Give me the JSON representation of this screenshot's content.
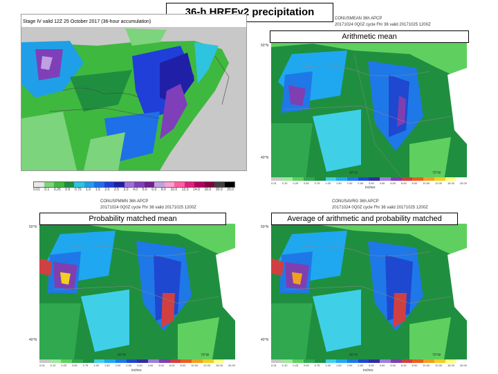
{
  "slide_title": "36-h HREFv2 precipitation",
  "stage4": {
    "header": "Stage IV valid 12Z 25 October 2017 (36-hour accumulation)",
    "legend_values": [
      "0.01",
      "0.1",
      "0.25",
      "0.5",
      "0.75",
      "1.0",
      "1.5",
      "2.0",
      "2.5",
      "3.0",
      "4.0",
      "5.0",
      "6.0",
      "8.0",
      "10.0",
      "12.0",
      "14.0",
      "16.0",
      "20.0",
      "25.0"
    ],
    "legend_colors": [
      "#e8e8e8",
      "#7cd47c",
      "#3fb83f",
      "#1f8f3f",
      "#2ec4e0",
      "#1f9fe8",
      "#1f6fe8",
      "#1f3fd8",
      "#1f1fa8",
      "#9f6fd8",
      "#7f3fb8",
      "#6f1f8f",
      "#c0a0e0",
      "#ff9fd0",
      "#ff5fa0",
      "#e0207f",
      "#b0005f",
      "#7f003f",
      "#3f3f3f",
      "#000000"
    ]
  },
  "panels": [
    {
      "key": "mean",
      "header_line1": "CONUSMEAN 36h APCP",
      "header_line2": "20171024 0Q0Z cycle Fhr 36 valid 20171025 1200Z",
      "caption": "Arithmetic mean"
    },
    {
      "key": "pmm",
      "header_line1": "CONUSPMMN 36h APCP",
      "header_line2": "20171024 0Q0Z cycle Fhr 36 valid 20171025 1200Z",
      "caption": "Probability matched mean"
    },
    {
      "key": "avg",
      "header_line1": "CONUSAVRG 36h APCP",
      "header_line2": "20171024 0Q0Z cycle Fhr 36 valid 20171025 1200Z",
      "caption": "Average of arithmetic and probability matched"
    }
  ],
  "lat_labels": [
    "50°N",
    "40°N"
  ],
  "lon_labels": [
    "80°W",
    "70°W"
  ],
  "units_label": "inches",
  "href_legend_values": [
    "0.01",
    "0.10",
    "0.25",
    "0.50",
    "0.75",
    "1.00",
    "1.50",
    "2.00",
    "2.50",
    "3.00",
    "4.00",
    "5.00",
    "6.00",
    "8.00",
    "10.00",
    "12.00",
    "15.00",
    "20.00"
  ],
  "href_legend_colors": [
    "#c8c8c8",
    "#9fe89f",
    "#5fd05f",
    "#2fa84f",
    "#1f8f3f",
    "#3fd0e8",
    "#1fa8f0",
    "#1f78e8",
    "#1f48d0",
    "#2f2fa0",
    "#9f7fd8",
    "#7f3fb0",
    "#d04040",
    "#e85f1f",
    "#f0a020",
    "#f0d020",
    "#ffff80",
    "#ffffff"
  ]
}
